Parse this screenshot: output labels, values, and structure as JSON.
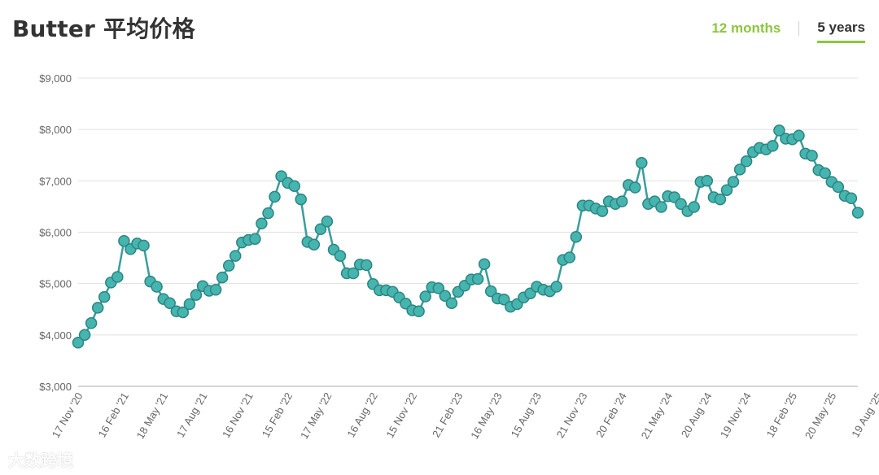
{
  "header": {
    "title": "Butter 平均价格",
    "tabs": [
      {
        "label": "12 months",
        "active": false
      },
      {
        "label": "5 years",
        "active": true
      }
    ]
  },
  "watermark": "大数跨境",
  "colors": {
    "line": "#3a9e9b",
    "marker_fill": "#46b5b0",
    "marker_stroke": "#2c8580",
    "accent": "#8dc63f",
    "grid": "#e0e0e0"
  },
  "chart_data": {
    "type": "line",
    "title": "",
    "xlabel": "",
    "ylabel": "",
    "ylim": [
      3000,
      9000
    ],
    "yticks": [
      3000,
      4000,
      5000,
      6000,
      7000,
      8000,
      9000
    ],
    "ytick_labels": [
      "$3,000",
      "$4,000",
      "$5,000",
      "$6,000",
      "$7,000",
      "$8,000",
      "$9,000"
    ],
    "grid": true,
    "x_tick_labels": [
      {
        "label": "17 Nov '20",
        "index": 0
      },
      {
        "label": "16 Feb '21",
        "index": 7
      },
      {
        "label": "18 May '21",
        "index": 13
      },
      {
        "label": "17 Aug '21",
        "index": 19
      },
      {
        "label": "16 Nov '21",
        "index": 26
      },
      {
        "label": "15 Feb '22",
        "index": 32
      },
      {
        "label": "17 May '22",
        "index": 38
      },
      {
        "label": "16 Aug '22",
        "index": 45
      },
      {
        "label": "15 Nov '22",
        "index": 51
      },
      {
        "label": "21 Feb '23",
        "index": 58
      },
      {
        "label": "16 May '23",
        "index": 64
      },
      {
        "label": "15 Aug '23",
        "index": 70
      },
      {
        "label": "21 Nov '23",
        "index": 77
      },
      {
        "label": "20 Feb '24",
        "index": 83
      },
      {
        "label": "21 May '24",
        "index": 90
      },
      {
        "label": "20 Aug '24",
        "index": 96
      },
      {
        "label": "19 Nov '24",
        "index": 102
      },
      {
        "label": "18 Feb '25",
        "index": 109
      },
      {
        "label": "20 May '25",
        "index": 115
      },
      {
        "label": "19 Aug '25",
        "index": 122
      }
    ],
    "series": [
      {
        "values": [
          3850,
          4000,
          4230,
          4530,
          4740,
          5020,
          5130,
          5830,
          5670,
          5780,
          5740,
          5040,
          4940,
          4700,
          4620,
          4460,
          4440,
          4600,
          4780,
          4950,
          4860,
          4880,
          5120,
          5350,
          5540,
          5800,
          5850,
          5870,
          6170,
          6370,
          6690,
          7090,
          6960,
          6900,
          6640,
          5810,
          5760,
          6060,
          6210,
          5660,
          5540,
          5200,
          5200,
          5370,
          5360,
          4990,
          4870,
          4870,
          4840,
          4730,
          4610,
          4480,
          4460,
          4750,
          4930,
          4910,
          4760,
          4620,
          4840,
          4960,
          5080,
          5090,
          5380,
          4850,
          4710,
          4690,
          4550,
          4600,
          4730,
          4810,
          4940,
          4880,
          4850,
          4940,
          5460,
          5510,
          5910,
          6520,
          6520,
          6460,
          6410,
          6600,
          6550,
          6600,
          6920,
          6870,
          7350,
          6550,
          6600,
          6490,
          6700,
          6680,
          6550,
          6410,
          6490,
          6980,
          7000,
          6680,
          6640,
          6820,
          6980,
          7220,
          7380,
          7560,
          7640,
          7610,
          7680,
          7980,
          7820,
          7810,
          7880,
          7530,
          7490,
          7210,
          7150,
          6980,
          6880,
          6710,
          6660,
          6380
        ]
      }
    ]
  }
}
